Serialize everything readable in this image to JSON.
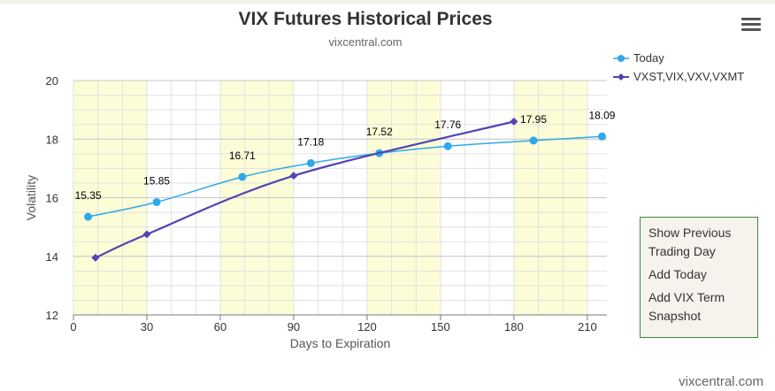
{
  "header": {
    "title": "VIX Futures Historical Prices",
    "subtitle": "vixcentral.com"
  },
  "menu": {
    "icon": "hamburger-menu-icon"
  },
  "legend": {
    "items": [
      {
        "label": "Today",
        "color": "#2fa9e8",
        "marker": "circle"
      },
      {
        "label": "VXST,VIX,VXV,VXMT",
        "color": "#5145b0",
        "marker": "diamond"
      }
    ]
  },
  "side_panel": {
    "show_previous": "Show Previous Trading Day",
    "add_today": "Add Today",
    "add_vix_term": "Add VIX Term Snapshot"
  },
  "credits": "vixcentral.com",
  "chart_data": {
    "type": "line",
    "title": "VIX Futures Historical Prices",
    "subtitle": "vixcentral.com",
    "xlabel": "Days to Expiration",
    "ylabel": "Volatility",
    "xlim": [
      0,
      218
    ],
    "ylim": [
      12,
      20
    ],
    "x_ticks": [
      0,
      30,
      60,
      90,
      120,
      150,
      180,
      210
    ],
    "y_ticks": [
      12,
      14,
      16,
      18,
      20
    ],
    "grid": true,
    "legend_position": "top-right",
    "shaded_x_bands": [
      [
        0,
        30
      ],
      [
        60,
        90
      ],
      [
        120,
        150
      ],
      [
        180,
        210
      ]
    ],
    "shade_color": "#fcfcd6",
    "series": [
      {
        "name": "Today",
        "color": "#2fa9e8",
        "marker": "circle",
        "x": [
          6,
          34,
          69,
          97,
          125,
          153,
          188,
          216
        ],
        "y": [
          15.35,
          15.85,
          16.71,
          17.18,
          17.52,
          17.76,
          17.95,
          18.09
        ],
        "labels": [
          "15.35",
          "15.85",
          "16.71",
          "17.18",
          "17.52",
          "17.76",
          "17.95",
          "18.09"
        ]
      },
      {
        "name": "VXST,VIX,VXV,VXMT",
        "color": "#5145b0",
        "marker": "diamond",
        "x": [
          9,
          30,
          90,
          180
        ],
        "y": [
          13.95,
          14.75,
          16.75,
          18.6
        ]
      }
    ]
  }
}
